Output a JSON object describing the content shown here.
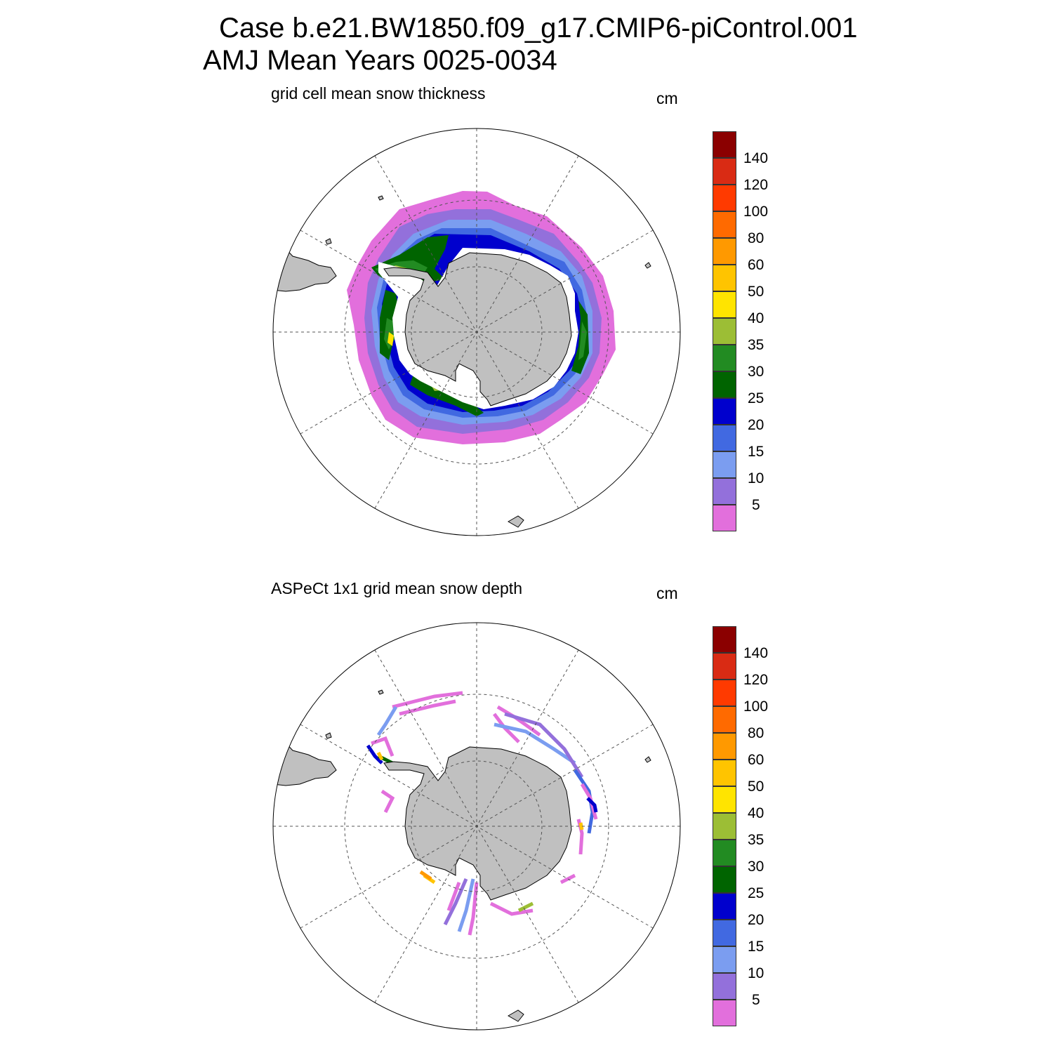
{
  "title": {
    "line1": "Case b.e21.BW1850.f09_g17.CMIP6-piControl.001",
    "line2": "AMJ Mean   Years 0025-0034"
  },
  "panels": [
    {
      "title": "grid cell mean snow thickness",
      "units": "cm"
    },
    {
      "title": "ASPeCt 1x1 grid mean snow depth",
      "units": "cm"
    }
  ],
  "colorbar": {
    "labels": [
      "140",
      "120",
      "100",
      "80",
      "60",
      "50",
      "40",
      "35",
      "30",
      "25",
      "20",
      "15",
      "10",
      "5"
    ],
    "colors": [
      "#8b0000",
      "#d92b14",
      "#ff3a00",
      "#ff6a00",
      "#ff9900",
      "#ffc400",
      "#ffe400",
      "#9cbe35",
      "#228b22",
      "#006400",
      "#0000cd",
      "#4169e1",
      "#7b9df0",
      "#9370db",
      "#e26fdc"
    ]
  },
  "map_colors": {
    "land": "#c0c0c0",
    "grid": "#555555"
  }
}
